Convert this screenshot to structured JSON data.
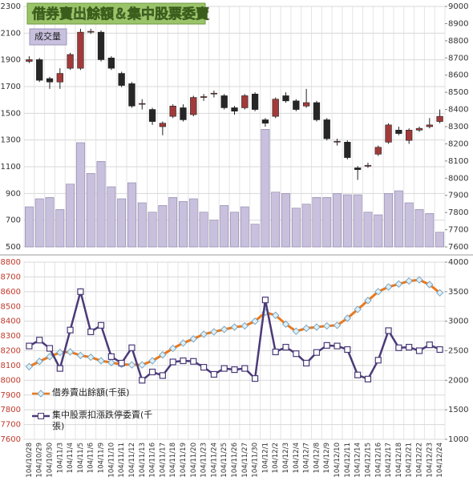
{
  "chart_data": [
    {
      "type": "candlestick",
      "title": "借券賣出餘額＆集中股票委賣",
      "series": [
        {
          "name": "成交量",
          "color": "#c9c0de",
          "values": [
            800,
            860,
            870,
            780,
            970,
            1280,
            1050,
            1140,
            950,
            860,
            980,
            830,
            760,
            810,
            870,
            840,
            860,
            760,
            700,
            810,
            760,
            800,
            670,
            1380,
            910,
            900,
            790,
            820,
            870,
            870,
            900,
            890,
            890,
            760,
            740,
            900,
            920,
            830,
            780,
            750,
            610
          ]
        }
      ],
      "candles": {
        "axis": "y2",
        "up_color": "#a33a3a",
        "down_color": "#262626",
        "open": [
          8680,
          8690,
          8580,
          8560,
          8640,
          8640,
          8850,
          8850,
          8700,
          8610,
          8550,
          8430,
          8400,
          8300,
          8360,
          8410,
          8370,
          8470,
          8490,
          8480,
          8410,
          8410,
          8490,
          8340,
          8360,
          8480,
          8450,
          8420,
          8440,
          8340,
          8210,
          8210,
          8060,
          8070,
          8140,
          8210,
          8280,
          8220,
          8280,
          8300,
          8330
        ],
        "high": [
          8710,
          8700,
          8590,
          8640,
          8730,
          8870,
          8870,
          8860,
          8710,
          8620,
          8560,
          8460,
          8410,
          8330,
          8430,
          8430,
          8480,
          8490,
          8510,
          8490,
          8420,
          8490,
          8500,
          8350,
          8470,
          8500,
          8460,
          8520,
          8450,
          8350,
          8230,
          8220,
          8070,
          8090,
          8190,
          8320,
          8300,
          8290,
          8300,
          8350,
          8400
        ],
        "low": [
          8670,
          8560,
          8520,
          8520,
          8630,
          8630,
          8840,
          8680,
          8630,
          8530,
          8410,
          8400,
          8310,
          8250,
          8350,
          8330,
          8360,
          8450,
          8470,
          8400,
          8370,
          8400,
          8390,
          8300,
          8350,
          8440,
          8390,
          8410,
          8330,
          8220,
          8190,
          8110,
          7990,
          8060,
          8130,
          8200,
          8250,
          8200,
          8270,
          8290,
          8320
        ],
        "close": [
          8690,
          8570,
          8560,
          8610,
          8720,
          8850,
          8855,
          8690,
          8640,
          8540,
          8420,
          8435,
          8330,
          8320,
          8420,
          8340,
          8470,
          8475,
          8495,
          8410,
          8390,
          8480,
          8400,
          8320,
          8460,
          8450,
          8400,
          8440,
          8340,
          8230,
          8215,
          8120,
          8050,
          8075,
          8180,
          8310,
          8260,
          8280,
          8290,
          8310,
          8360
        ]
      },
      "ylim": [
        500,
        2300
      ],
      "yticks": [
        500,
        700,
        900,
        1100,
        1300,
        1500,
        1700,
        1900,
        2100,
        2300
      ],
      "y2lim": [
        7600,
        9000
      ],
      "y2ticks": [
        7600,
        7700,
        7800,
        7900,
        8000,
        8100,
        8200,
        8300,
        8400,
        8500,
        8600,
        8700,
        8800,
        8900,
        9000
      ],
      "grid": true
    },
    {
      "type": "line",
      "categories": [
        "104/10/28",
        "104/10/29",
        "104/10/30",
        "104/11/3",
        "104/11/4",
        "104/11/5",
        "104/11/6",
        "104/11/9",
        "104/11/10",
        "104/11/11",
        "104/11/12",
        "104/11/13",
        "104/11/16",
        "104/11/17",
        "104/11/18",
        "104/11/19",
        "104/11/20",
        "104/11/23",
        "104/11/24",
        "104/11/25",
        "104/11/26",
        "104/11/27",
        "104/11/30",
        "104/12/1",
        "104/12/2",
        "104/12/3",
        "104/12/4",
        "104/12/7",
        "104/12/8",
        "104/12/9",
        "104/12/10",
        "104/12/11",
        "104/12/14",
        "104/12/15",
        "104/12/16",
        "104/12/17",
        "104/12/18",
        "104/12/21",
        "104/12/22",
        "104/12/23",
        "104/12/24"
      ],
      "series": [
        {
          "name": "借券賣出餘額(千張)",
          "color": "#e8781e",
          "marker": "diamond",
          "axis": "y2",
          "values": [
            2230,
            2320,
            2400,
            2470,
            2480,
            2420,
            2390,
            2330,
            2300,
            2270,
            2260,
            2260,
            2330,
            2430,
            2540,
            2630,
            2700,
            2780,
            2820,
            2860,
            2900,
            2920,
            3000,
            3150,
            3100,
            2950,
            2830,
            2880,
            2900,
            2920,
            2930,
            3050,
            3200,
            3350,
            3500,
            3580,
            3630,
            3680,
            3700,
            3620,
            3480
          ]
        },
        {
          "name": "集中股票扣漲跌停委賣(千張)",
          "color": "#4b3a78",
          "marker": "square",
          "axis": "y2",
          "values": [
            2580,
            2680,
            2540,
            2200,
            2850,
            3500,
            2820,
            2930,
            2400,
            2290,
            2550,
            2000,
            2140,
            2080,
            2310,
            2330,
            2320,
            2220,
            2100,
            2200,
            2180,
            2200,
            2030,
            3360,
            2480,
            2560,
            2450,
            2290,
            2470,
            2590,
            2580,
            2520,
            2090,
            2020,
            2340,
            2840,
            2550,
            2560,
            2500,
            2600,
            2520
          ]
        }
      ],
      "ylim": [
        7600,
        8800
      ],
      "yticks": [
        7600,
        7700,
        7800,
        7900,
        8000,
        8100,
        8200,
        8300,
        8400,
        8500,
        8600,
        8700,
        8800
      ],
      "y2lim": [
        1000,
        4000
      ],
      "y2ticks": [
        1000,
        1500,
        2000,
        2500,
        3000,
        3500,
        4000
      ],
      "grid": true
    }
  ]
}
